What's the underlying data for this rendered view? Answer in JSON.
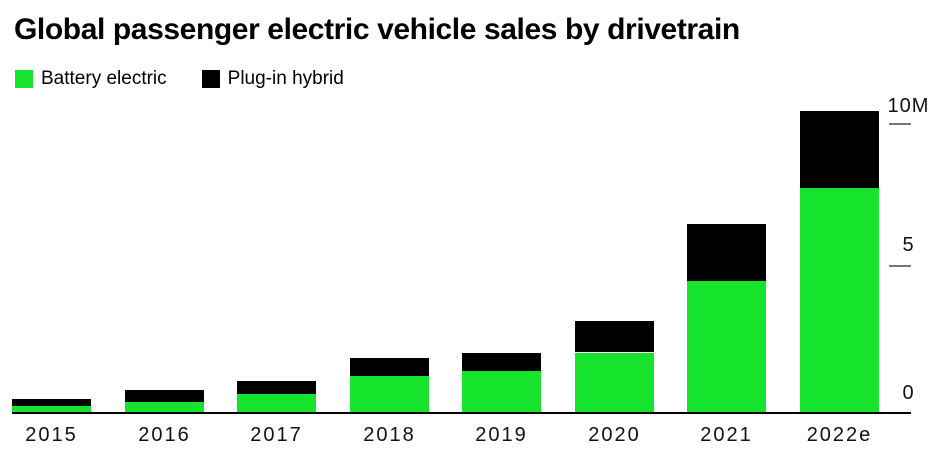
{
  "title": "Global passenger electric vehicle sales by drivetrain",
  "legend": [
    {
      "label": "Battery electric",
      "color": "#16e42c"
    },
    {
      "label": "Plug-in hybrid",
      "color": "#000000"
    }
  ],
  "y_axis": {
    "ticks": [
      {
        "label": "10M",
        "value": 10
      },
      {
        "label": "5",
        "value": 5
      },
      {
        "label": "0",
        "value": 0
      }
    ]
  },
  "chart_data": {
    "type": "bar",
    "stacked": true,
    "title": "Global passenger electric vehicle sales by drivetrain",
    "categories": [
      "2015",
      "2016",
      "2017",
      "2018",
      "2019",
      "2020",
      "2021",
      "2022e"
    ],
    "series": [
      {
        "name": "Battery electric",
        "color": "#16e42c",
        "values": [
          0.25,
          0.4,
          0.65,
          1.3,
          1.45,
          2.1,
          4.6,
          7.8
        ]
      },
      {
        "name": "Plug-in hybrid",
        "color": "#000000",
        "values": [
          0.25,
          0.4,
          0.45,
          0.6,
          0.65,
          1.1,
          1.95,
          2.7
        ]
      }
    ],
    "unit": "millions of vehicles",
    "xlabel": "",
    "ylabel": "",
    "ylim": [
      0,
      10.5
    ],
    "y_tick_values": [
      0,
      5,
      10
    ],
    "y_tick_labels": [
      "0",
      "5",
      "10M"
    ],
    "grid": false,
    "legend_position": "top-left"
  }
}
